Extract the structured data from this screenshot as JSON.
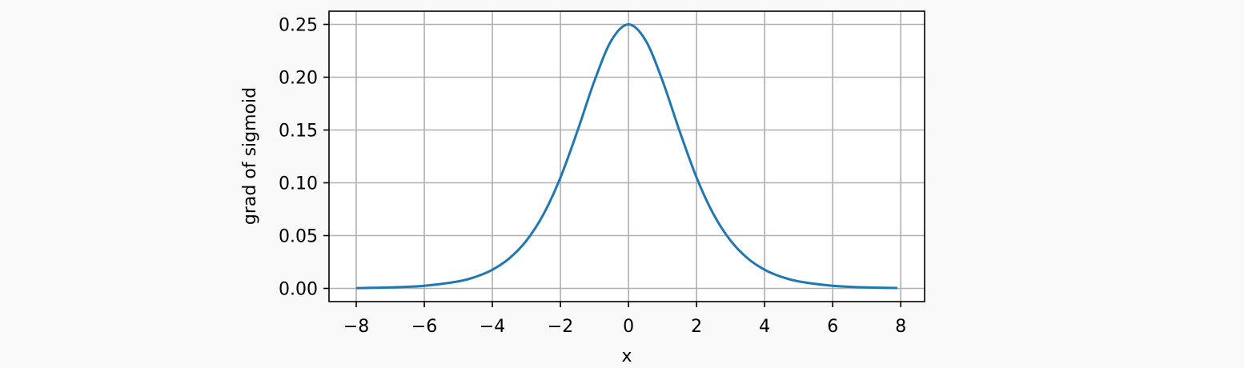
{
  "chart_data": {
    "type": "line",
    "xlabel": "x",
    "ylabel": "grad of sigmoid",
    "xlim": [
      -8.8,
      8.7
    ],
    "ylim": [
      -0.0125,
      0.2625
    ],
    "grid": true,
    "xticks": [
      -8,
      -6,
      -4,
      -2,
      0,
      2,
      4,
      6,
      8
    ],
    "xtick_labels": [
      "−8",
      "−6",
      "−4",
      "−2",
      "0",
      "2",
      "4",
      "6",
      "8"
    ],
    "yticks": [
      0.0,
      0.05,
      0.1,
      0.15,
      0.2,
      0.25
    ],
    "ytick_labels": [
      "0.00",
      "0.05",
      "0.10",
      "0.15",
      "0.20",
      "0.25"
    ],
    "series": [
      {
        "color": "#1f77b4",
        "x": [
          -8,
          -7,
          -6,
          -5,
          -4.5,
          -4,
          -3.5,
          -3,
          -2.5,
          -2,
          -1.5,
          -1,
          -0.5,
          0,
          0.5,
          1,
          1.5,
          2,
          2.5,
          3,
          3.5,
          4,
          4.5,
          5,
          6,
          7,
          7.9
        ],
        "y": [
          0.0003,
          0.0009,
          0.0025,
          0.0066,
          0.0109,
          0.0177,
          0.0285,
          0.0452,
          0.0701,
          0.105,
          0.1491,
          0.1966,
          0.235,
          0.25,
          0.235,
          0.1966,
          0.1491,
          0.105,
          0.0701,
          0.0452,
          0.0285,
          0.0177,
          0.0109,
          0.0066,
          0.0025,
          0.0009,
          0.0004
        ]
      }
    ]
  },
  "colors": {
    "background": "#f9f9f9",
    "plot_background": "#ffffff",
    "grid": "#b0b0b0",
    "axes": "#000000"
  }
}
